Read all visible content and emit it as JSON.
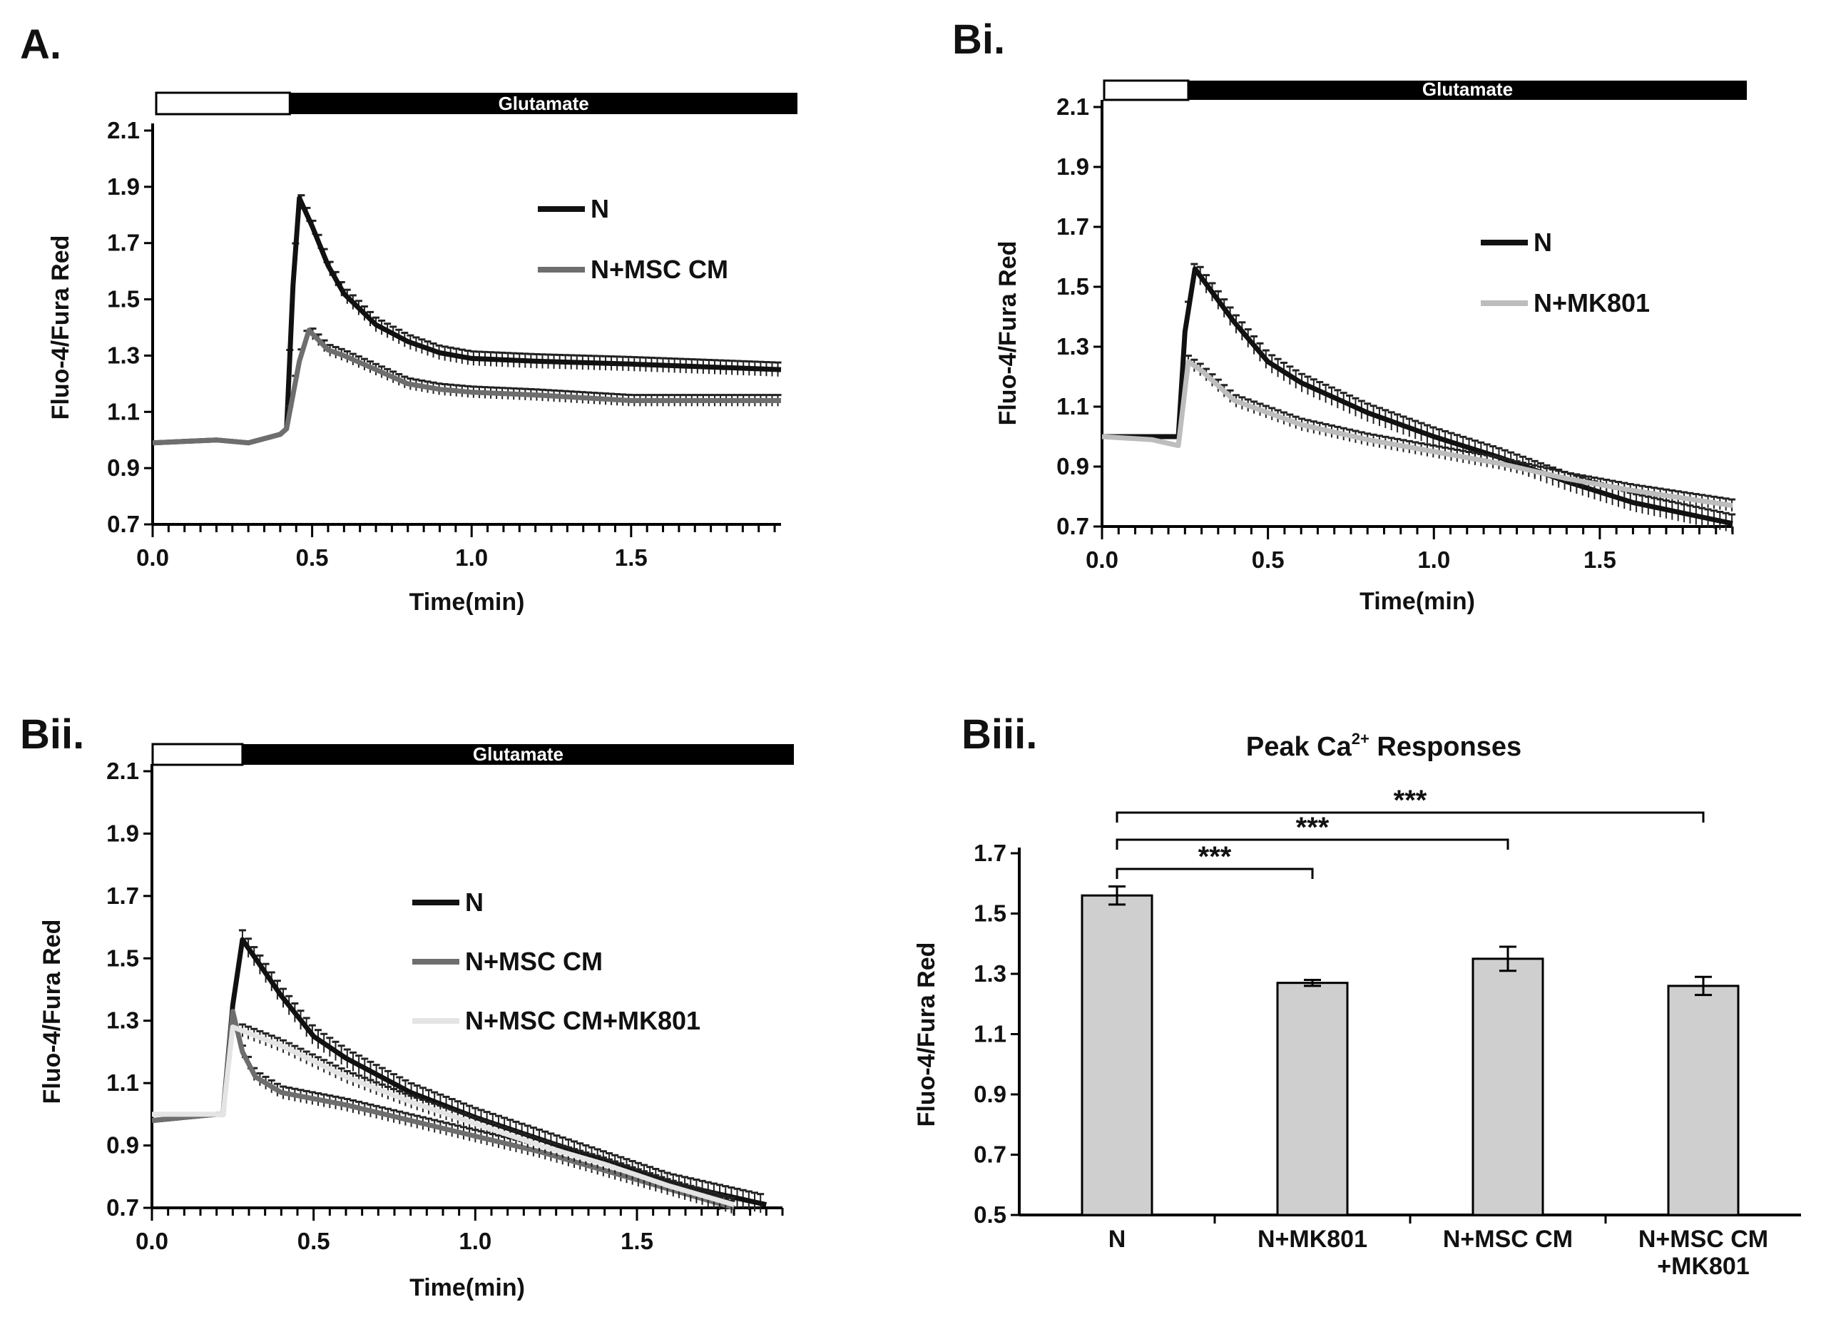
{
  "chart_data": [
    {
      "id": "A",
      "type": "line",
      "panel_label": "A.",
      "stimulus_label": "Glutamate",
      "stimulus_start_min": 0.43,
      "xlabel": "Time(min)",
      "ylabel": "Fluo-4/Fura Red",
      "xlim": [
        0,
        1.97
      ],
      "ylim": [
        0.7,
        2.1
      ],
      "xticks": [
        "0.0",
        "0.5",
        "1.0",
        "1.5"
      ],
      "yticks": [
        "0.7",
        "0.9",
        "1.1",
        "1.3",
        "1.5",
        "1.7",
        "1.9",
        "2.1"
      ],
      "legend_position": "right",
      "series": [
        {
          "name": "N",
          "color": "#111111",
          "error": 0.025,
          "points": [
            [
              0,
              0.99
            ],
            [
              0.2,
              1.0
            ],
            [
              0.3,
              0.99
            ],
            [
              0.4,
              1.02
            ],
            [
              0.42,
              1.04
            ],
            [
              0.44,
              1.55
            ],
            [
              0.46,
              1.86
            ],
            [
              0.5,
              1.76
            ],
            [
              0.55,
              1.62
            ],
            [
              0.6,
              1.52
            ],
            [
              0.7,
              1.41
            ],
            [
              0.8,
              1.35
            ],
            [
              0.9,
              1.31
            ],
            [
              1.0,
              1.29
            ],
            [
              1.2,
              1.28
            ],
            [
              1.5,
              1.27
            ],
            [
              1.97,
              1.25
            ]
          ]
        },
        {
          "name": "N+MSC CM",
          "color": "#6e6e6e",
          "error": 0.02,
          "points": [
            [
              0,
              0.99
            ],
            [
              0.2,
              1.0
            ],
            [
              0.3,
              0.99
            ],
            [
              0.4,
              1.02
            ],
            [
              0.42,
              1.04
            ],
            [
              0.46,
              1.28
            ],
            [
              0.49,
              1.39
            ],
            [
              0.55,
              1.32
            ],
            [
              0.6,
              1.3
            ],
            [
              0.7,
              1.25
            ],
            [
              0.8,
              1.2
            ],
            [
              0.9,
              1.18
            ],
            [
              1.0,
              1.17
            ],
            [
              1.2,
              1.16
            ],
            [
              1.5,
              1.14
            ],
            [
              1.97,
              1.14
            ]
          ]
        }
      ]
    },
    {
      "id": "Bi",
      "type": "line",
      "panel_label": "Bi.",
      "stimulus_label": "Glutamate",
      "stimulus_start_min": 0.26,
      "xlabel": "Time(min)",
      "ylabel": "Fluo-4/Fura Red",
      "xlim": [
        0,
        1.9
      ],
      "ylim": [
        0.7,
        2.1
      ],
      "xticks": [
        "0.0",
        "0.5",
        "1.0",
        "1.5"
      ],
      "yticks": [
        "0.7",
        "0.9",
        "1.1",
        "1.3",
        "1.5",
        "1.7",
        "1.9",
        "2.1"
      ],
      "legend_position": "right",
      "series": [
        {
          "name": "N",
          "color": "#111111",
          "error": 0.03,
          "points": [
            [
              0,
              1.0
            ],
            [
              0.2,
              1.0
            ],
            [
              0.23,
              1.0
            ],
            [
              0.25,
              1.35
            ],
            [
              0.28,
              1.56
            ],
            [
              0.32,
              1.5
            ],
            [
              0.4,
              1.38
            ],
            [
              0.5,
              1.25
            ],
            [
              0.6,
              1.18
            ],
            [
              0.8,
              1.08
            ],
            [
              1.0,
              1.0
            ],
            [
              1.2,
              0.93
            ],
            [
              1.4,
              0.85
            ],
            [
              1.6,
              0.78
            ],
            [
              1.9,
              0.71
            ]
          ]
        },
        {
          "name": "N+MK801",
          "color": "#bdbdbd",
          "error": 0.02,
          "points": [
            [
              0,
              1.0
            ],
            [
              0.15,
              0.99
            ],
            [
              0.23,
              0.97
            ],
            [
              0.26,
              1.25
            ],
            [
              0.3,
              1.22
            ],
            [
              0.4,
              1.12
            ],
            [
              0.5,
              1.08
            ],
            [
              0.6,
              1.04
            ],
            [
              0.8,
              0.99
            ],
            [
              1.0,
              0.95
            ],
            [
              1.2,
              0.91
            ],
            [
              1.4,
              0.86
            ],
            [
              1.6,
              0.82
            ],
            [
              1.9,
              0.77
            ]
          ]
        }
      ]
    },
    {
      "id": "Bii",
      "type": "line",
      "panel_label": "Bii.",
      "stimulus_label": "Glutamate",
      "stimulus_start_min": 0.28,
      "xlabel": "Time(min)",
      "ylabel": "Fluo-4/Fura Red",
      "xlim": [
        0,
        1.95
      ],
      "ylim": [
        0.7,
        2.1
      ],
      "xticks": [
        "0.0",
        "0.5",
        "1.0",
        "1.5"
      ],
      "yticks": [
        "0.7",
        "0.9",
        "1.1",
        "1.3",
        "1.5",
        "1.7",
        "1.9",
        "2.1"
      ],
      "legend_position": "right",
      "series": [
        {
          "name": "N",
          "color": "#111111",
          "error": 0.03,
          "points": [
            [
              0,
              0.98
            ],
            [
              0.2,
              1.0
            ],
            [
              0.22,
              1.0
            ],
            [
              0.25,
              1.35
            ],
            [
              0.28,
              1.56
            ],
            [
              0.32,
              1.5
            ],
            [
              0.4,
              1.38
            ],
            [
              0.5,
              1.25
            ],
            [
              0.6,
              1.18
            ],
            [
              0.8,
              1.07
            ],
            [
              1.0,
              0.99
            ],
            [
              1.2,
              0.92
            ],
            [
              1.4,
              0.85
            ],
            [
              1.6,
              0.78
            ],
            [
              1.9,
              0.71
            ]
          ]
        },
        {
          "name": "N+MSC CM",
          "color": "#6e6e6e",
          "error": 0.02,
          "points": [
            [
              0,
              0.98
            ],
            [
              0.2,
              1.0
            ],
            [
              0.22,
              1.0
            ],
            [
              0.25,
              1.33
            ],
            [
              0.28,
              1.2
            ],
            [
              0.32,
              1.12
            ],
            [
              0.4,
              1.07
            ],
            [
              0.6,
              1.03
            ],
            [
              0.8,
              0.98
            ],
            [
              1.0,
              0.93
            ],
            [
              1.2,
              0.88
            ],
            [
              1.4,
              0.82
            ],
            [
              1.6,
              0.76
            ],
            [
              1.8,
              0.7
            ]
          ]
        },
        {
          "name": "N+MSC CM+MK801",
          "color": "#e4e4e4",
          "error": 0.02,
          "points": [
            [
              0,
              1.0
            ],
            [
              0.2,
              1.0
            ],
            [
              0.22,
              1.0
            ],
            [
              0.25,
              1.28
            ],
            [
              0.3,
              1.26
            ],
            [
              0.4,
              1.22
            ],
            [
              0.5,
              1.17
            ],
            [
              0.6,
              1.12
            ],
            [
              0.8,
              1.04
            ],
            [
              1.0,
              0.97
            ],
            [
              1.2,
              0.9
            ],
            [
              1.4,
              0.84
            ],
            [
              1.6,
              0.77
            ],
            [
              1.8,
              0.71
            ]
          ]
        }
      ]
    },
    {
      "id": "Biii",
      "type": "bar",
      "panel_label": "Biii.",
      "title_main": "Peak Ca",
      "title_sup": "2+",
      "title_rest": " Responses",
      "ylabel": "Fluo-4/Fura Red",
      "ylim": [
        0.5,
        1.7
      ],
      "yticks": [
        "0.5",
        "0.7",
        "0.9",
        "1.1",
        "1.3",
        "1.5",
        "1.7"
      ],
      "categories": [
        [
          "N"
        ],
        [
          "N+MK801"
        ],
        [
          "N+MSC CM"
        ],
        [
          "N+MSC CM",
          "+MK801"
        ]
      ],
      "values": [
        1.56,
        1.27,
        1.35,
        1.26
      ],
      "errors": [
        0.03,
        0.01,
        0.04,
        0.03
      ],
      "bar_color": "#cfcfcf",
      "significance": [
        {
          "from": 0,
          "to": 1,
          "label": "***"
        },
        {
          "from": 0,
          "to": 2,
          "label": "***"
        },
        {
          "from": 0,
          "to": 3,
          "label": "***"
        }
      ]
    }
  ]
}
